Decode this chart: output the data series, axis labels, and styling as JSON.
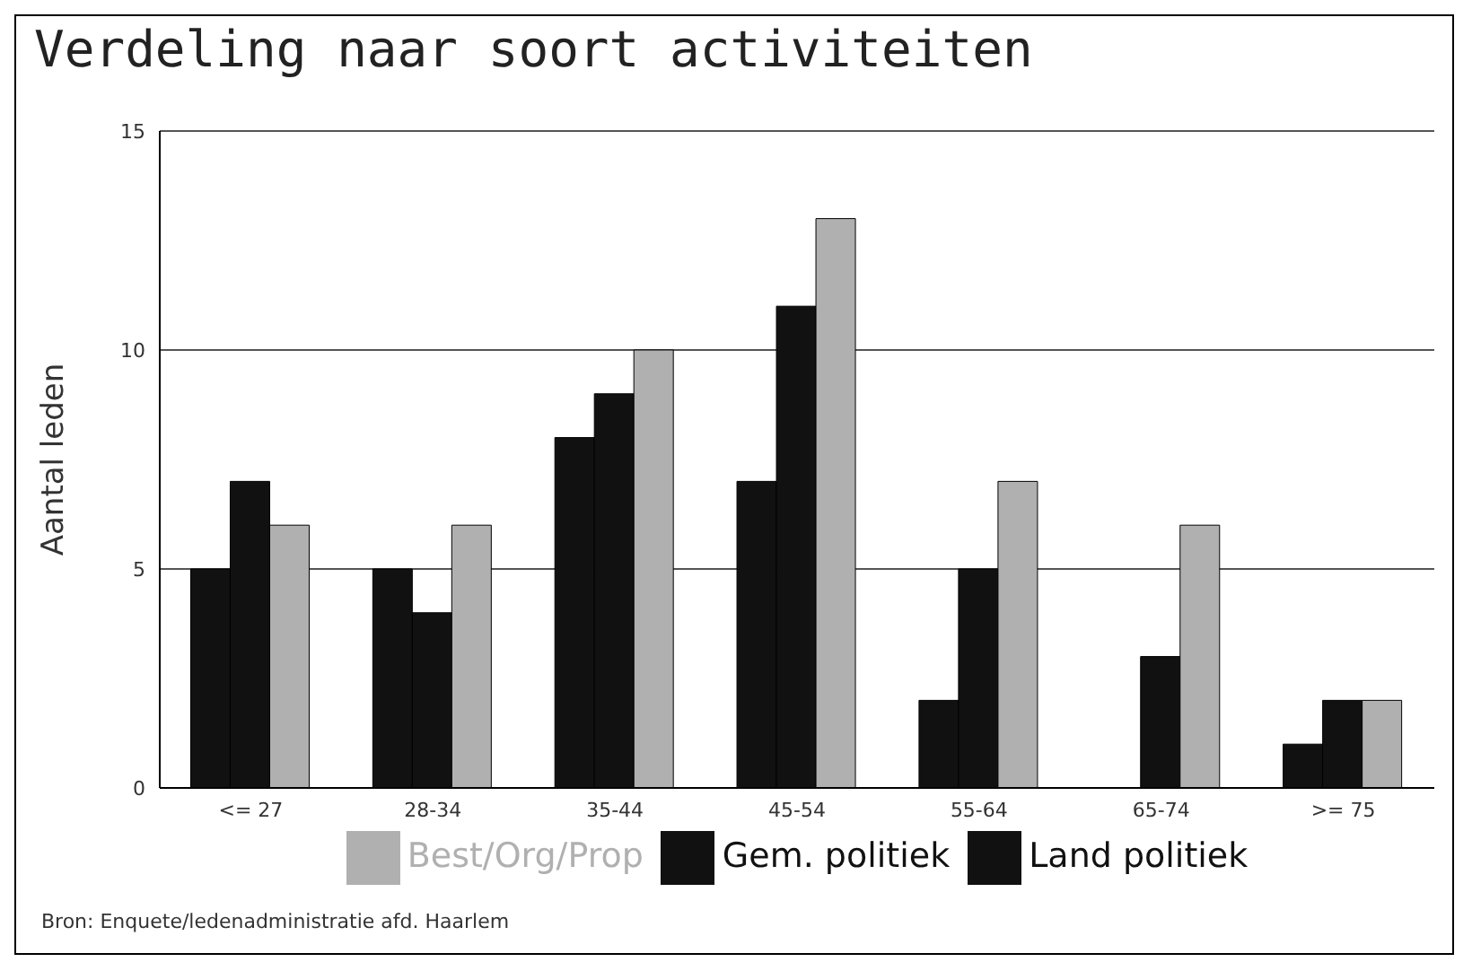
{
  "chart_data": {
    "type": "bar",
    "title": "Verdeling naar soort activiteiten",
    "ylabel": "Aantal leden",
    "categories": [
      "<= 27",
      "28-34",
      "35-44",
      "45-54",
      "55-64",
      "65-74",
      ">= 75"
    ],
    "series": [
      {
        "name": "Land politiek",
        "color": "#111111",
        "values": [
          5,
          5,
          8,
          7,
          2,
          0,
          1
        ]
      },
      {
        "name": "Gem. politiek",
        "color": "#111111",
        "values": [
          7,
          4,
          9,
          11,
          5,
          3,
          2
        ]
      },
      {
        "name": "Best/Org/Prop",
        "color": "#b0b0b0",
        "values": [
          6,
          6,
          10,
          13,
          7,
          6,
          2
        ]
      }
    ],
    "ylim": [
      0,
      15
    ],
    "yticks": [
      0,
      5,
      10,
      15
    ],
    "grid": "y",
    "legend": "bottom",
    "annotations": [
      "Bron: Enquete/ledenadministratie afd. Haarlem"
    ]
  }
}
